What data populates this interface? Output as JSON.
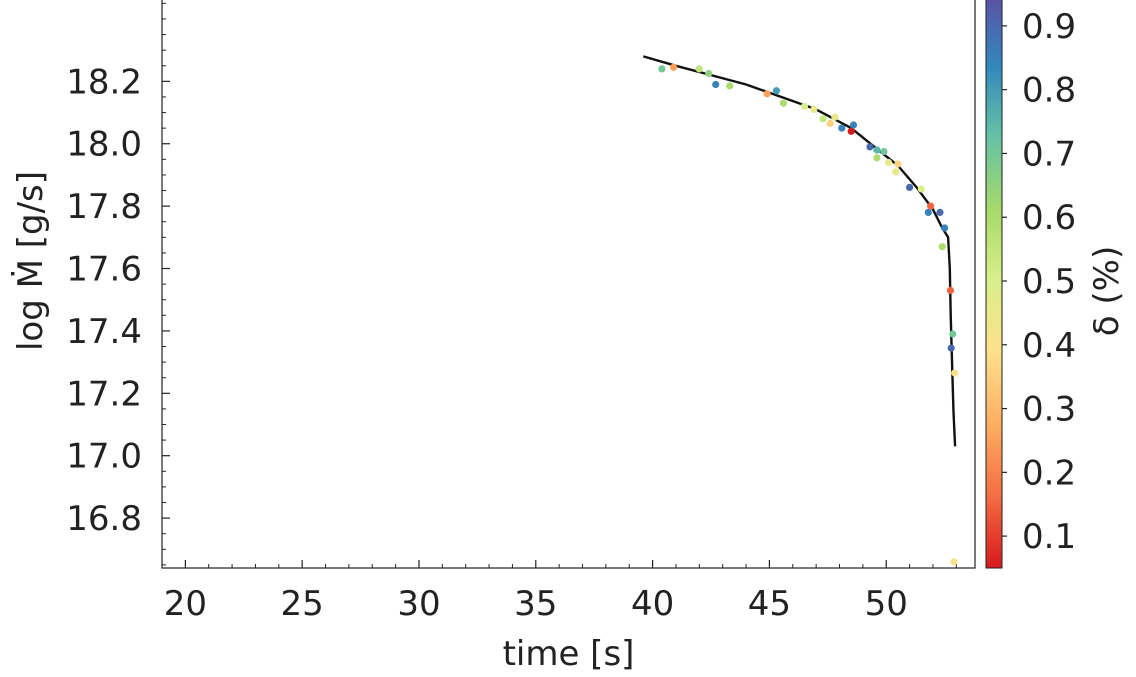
{
  "chart_data": {
    "type": "scatter",
    "xlabel": "time [s]",
    "ylabel": "log Ṁ [g/s]",
    "xlim": [
      19,
      53.8
    ],
    "ylim": [
      16.64,
      18.48
    ],
    "x_ticks": [
      20,
      25,
      30,
      35,
      40,
      45,
      50
    ],
    "y_ticks": [
      16.8,
      17.0,
      17.2,
      17.4,
      17.6,
      17.8,
      18.0,
      18.2
    ],
    "grid": false,
    "colorbar": {
      "label": "δ (%)",
      "range": [
        0.05,
        0.95
      ],
      "ticks": [
        "0.1",
        "0.2",
        "0.3",
        "0.4",
        "0.5",
        "0.6",
        "0.7",
        "0.8",
        "0.9"
      ],
      "colormap": [
        "#d7191c",
        "#f46d43",
        "#fdae61",
        "#fee08b",
        "#d9ef8b",
        "#a6d96a",
        "#66c2a5",
        "#3288bd",
        "#5e4fa2"
      ]
    },
    "line": {
      "name": "",
      "color": "#111111",
      "x": [
        39.6,
        41,
        42.5,
        44,
        45.5,
        47,
        48.5,
        49.5,
        50.5,
        51.3,
        52,
        52.4,
        52.65,
        52.72,
        52.76,
        52.8,
        52.83,
        52.88,
        52.95
      ],
      "y": [
        18.28,
        18.25,
        18.22,
        18.19,
        18.15,
        18.11,
        18.05,
        17.99,
        17.93,
        17.86,
        17.79,
        17.73,
        17.7,
        17.6,
        17.45,
        17.35,
        17.27,
        17.14,
        17.03
      ]
    },
    "points": [
      {
        "x": 40.4,
        "y": 18.24,
        "delta": 0.7
      },
      {
        "x": 40.9,
        "y": 18.245,
        "delta": 0.25
      },
      {
        "x": 42.0,
        "y": 18.24,
        "delta": 0.55
      },
      {
        "x": 42.4,
        "y": 18.225,
        "delta": 0.65
      },
      {
        "x": 42.7,
        "y": 18.19,
        "delta": 0.85
      },
      {
        "x": 43.3,
        "y": 18.185,
        "delta": 0.6
      },
      {
        "x": 44.9,
        "y": 18.16,
        "delta": 0.25
      },
      {
        "x": 45.3,
        "y": 18.17,
        "delta": 0.8
      },
      {
        "x": 45.6,
        "y": 18.13,
        "delta": 0.6
      },
      {
        "x": 46.5,
        "y": 18.12,
        "delta": 0.5
      },
      {
        "x": 46.9,
        "y": 18.11,
        "delta": 0.45
      },
      {
        "x": 47.3,
        "y": 18.08,
        "delta": 0.55
      },
      {
        "x": 47.6,
        "y": 18.065,
        "delta": 0.35
      },
      {
        "x": 47.8,
        "y": 18.085,
        "delta": 0.45
      },
      {
        "x": 48.1,
        "y": 18.05,
        "delta": 0.85
      },
      {
        "x": 48.5,
        "y": 18.04,
        "delta": 0.05
      },
      {
        "x": 48.6,
        "y": 18.06,
        "delta": 0.85
      },
      {
        "x": 49.3,
        "y": 17.99,
        "delta": 0.9
      },
      {
        "x": 49.6,
        "y": 17.98,
        "delta": 0.75
      },
      {
        "x": 49.6,
        "y": 17.955,
        "delta": 0.6
      },
      {
        "x": 49.9,
        "y": 17.975,
        "delta": 0.7
      },
      {
        "x": 50.1,
        "y": 17.94,
        "delta": 0.45
      },
      {
        "x": 50.4,
        "y": 17.91,
        "delta": 0.45
      },
      {
        "x": 50.5,
        "y": 17.935,
        "delta": 0.35
      },
      {
        "x": 51.0,
        "y": 17.86,
        "delta": 0.9
      },
      {
        "x": 51.5,
        "y": 17.855,
        "delta": 0.5
      },
      {
        "x": 51.8,
        "y": 17.78,
        "delta": 0.85
      },
      {
        "x": 51.9,
        "y": 17.8,
        "delta": 0.15
      },
      {
        "x": 52.3,
        "y": 17.78,
        "delta": 0.9
      },
      {
        "x": 52.4,
        "y": 17.67,
        "delta": 0.6
      },
      {
        "x": 52.5,
        "y": 17.73,
        "delta": 0.85
      },
      {
        "x": 52.75,
        "y": 17.53,
        "delta": 0.15
      },
      {
        "x": 52.78,
        "y": 17.345,
        "delta": 0.9
      },
      {
        "x": 52.85,
        "y": 17.39,
        "delta": 0.7
      },
      {
        "x": 52.93,
        "y": 17.265,
        "delta": 0.4
      },
      {
        "x": 52.9,
        "y": 16.66,
        "delta": 0.4
      }
    ]
  }
}
